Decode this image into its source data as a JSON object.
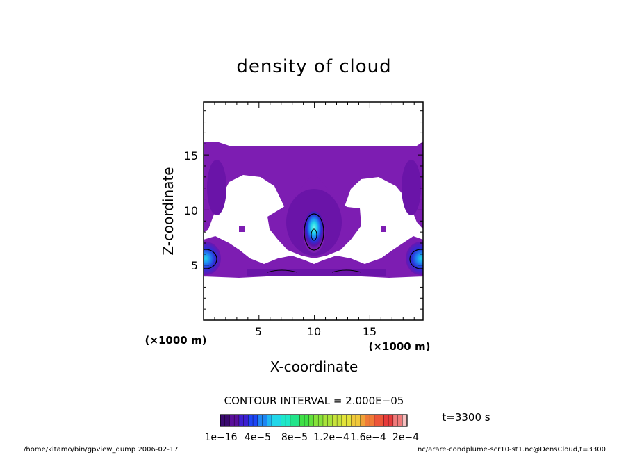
{
  "chart_data": {
    "type": "heatmap",
    "title": "density of cloud",
    "xlabel": "X-coordinate",
    "ylabel": "Z-coordinate",
    "x_unit_label": "(×1000 m)",
    "y_unit_label": "(×1000 m)",
    "xlim": [
      0,
      19.8
    ],
    "ylim": [
      0,
      19.8
    ],
    "x_ticks": [
      "5",
      "10",
      "15"
    ],
    "y_ticks": [
      "5",
      "10",
      "15"
    ],
    "x_tick_values": [
      5,
      10,
      15
    ],
    "y_tick_values": [
      5,
      10,
      15
    ],
    "contour_interval": "CONTOUR INTERVAL = 2.000E−05",
    "time_label": "t=3300 s",
    "colorbar_ticks": [
      "1e−16",
      "4e−5",
      "8e−5",
      "1.2e−4",
      "1.6e−4",
      "2e−4"
    ],
    "colorbar_range": [
      0,
      0.0002
    ],
    "colorbar_colors": [
      "#3a0a6e",
      "#5a0f9a",
      "#3d1fd0",
      "#1d45f5",
      "#1e86f2",
      "#20b8f0",
      "#22d6e8",
      "#1ee8c9",
      "#22e48a",
      "#3fe046",
      "#62e13c",
      "#86e23a",
      "#a8e33a",
      "#c8e33b",
      "#e3e33b",
      "#f0c83a",
      "#f0a038",
      "#ef7a36",
      "#ec5538",
      "#e63a3a",
      "#f07a7a",
      "#f7c0c0"
    ],
    "features": [
      {
        "name": "central plume core",
        "x": 10.0,
        "z": 8.0,
        "peak": "7e−5"
      },
      {
        "name": "left edge blob",
        "x": 0.3,
        "z": 5.5
      },
      {
        "name": "right edge blob",
        "x": 19.6,
        "z": 5.5
      },
      {
        "name": "upper cloud layer",
        "z_top": 16.0
      }
    ],
    "grid": false
  },
  "footer": {
    "left": "/home/kitamo/bin/gpview_dump  2006-02-17",
    "right": "nc/arare-condplume-scr10-st1.nc@DensCloud,t=3300"
  }
}
